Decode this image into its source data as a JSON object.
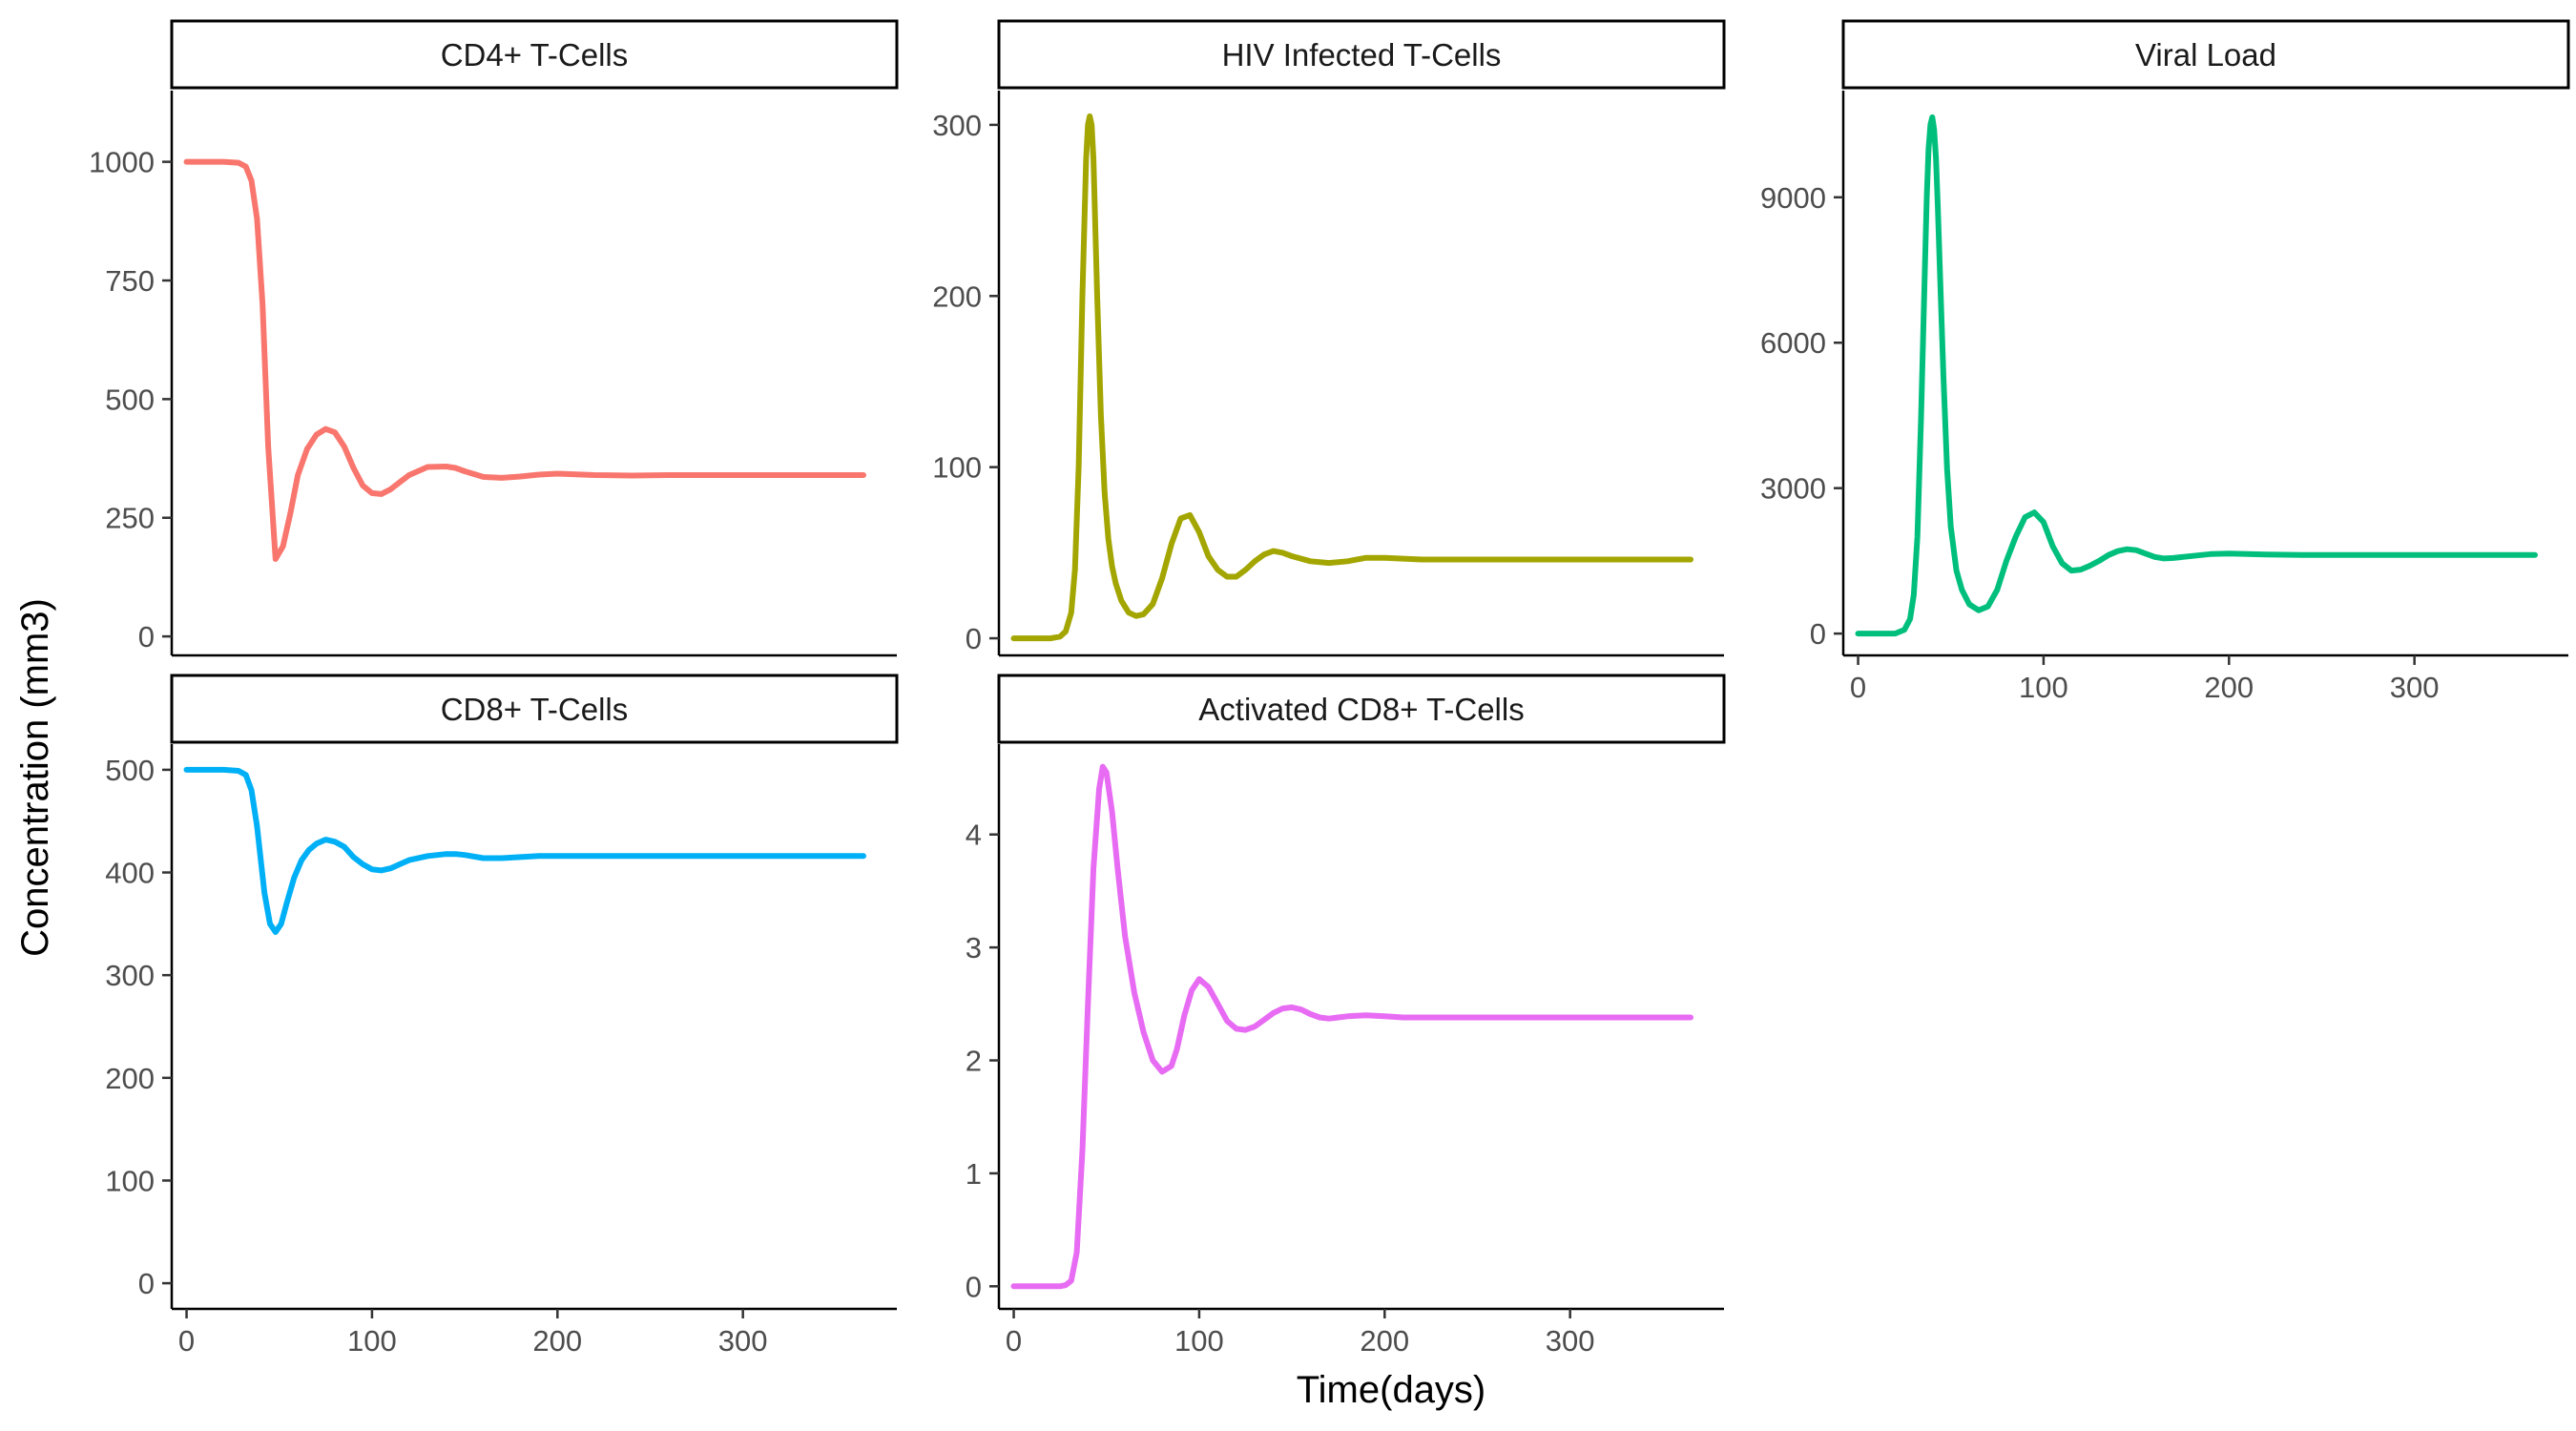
{
  "figure": {
    "ylabel": "Concentration (mm3)",
    "xlabel": "Time(days)"
  },
  "chart_data": [
    {
      "type": "line",
      "title": "CD4+ T-Cells",
      "color": "#F8766D",
      "xlim": [
        -8,
        383
      ],
      "ylim": [
        -40,
        1150
      ],
      "xticks": [
        0,
        100,
        200,
        300
      ],
      "yticks": [
        0,
        250,
        500,
        750,
        1000
      ],
      "show_xticks": false,
      "x": [
        0,
        10,
        20,
        28,
        32,
        35,
        38,
        41,
        44,
        48,
        52,
        56,
        60,
        65,
        70,
        75,
        80,
        85,
        90,
        95,
        100,
        105,
        110,
        115,
        120,
        130,
        140,
        145,
        150,
        160,
        170,
        180,
        190,
        200,
        220,
        240,
        260,
        280,
        300,
        320,
        340,
        365
      ],
      "y": [
        1000,
        1000,
        1000,
        998,
        990,
        960,
        880,
        700,
        400,
        163,
        190,
        260,
        340,
        395,
        425,
        437,
        430,
        400,
        355,
        318,
        302,
        300,
        310,
        325,
        340,
        357,
        358,
        355,
        348,
        336,
        334,
        337,
        341,
        343,
        340,
        339,
        340,
        340,
        340,
        340,
        340,
        340
      ]
    },
    {
      "type": "line",
      "title": "HIV Infected T-Cells",
      "color": "#A3A500",
      "xlim": [
        -8,
        383
      ],
      "ylim": [
        -10,
        320
      ],
      "xticks": [
        0,
        100,
        200,
        300
      ],
      "yticks": [
        0,
        100,
        200,
        300
      ],
      "show_xticks": false,
      "x": [
        0,
        10,
        20,
        25,
        28,
        31,
        33,
        35,
        37,
        39,
        40,
        41,
        42,
        43,
        45,
        47,
        49,
        51,
        53,
        55,
        58,
        62,
        66,
        70,
        75,
        80,
        85,
        90,
        95,
        100,
        105,
        110,
        115,
        120,
        125,
        130,
        135,
        140,
        145,
        150,
        160,
        170,
        180,
        190,
        200,
        220,
        240,
        260,
        280,
        300,
        320,
        340,
        365
      ],
      "y": [
        0,
        0,
        0,
        1,
        4,
        15,
        40,
        100,
        200,
        280,
        300,
        305,
        300,
        280,
        200,
        130,
        85,
        58,
        42,
        32,
        22,
        15,
        13,
        14,
        20,
        35,
        55,
        70,
        72,
        62,
        48,
        40,
        36,
        36,
        40,
        45,
        49,
        51,
        50,
        48,
        45,
        44,
        45,
        47,
        47,
        46,
        46,
        46,
        46,
        46,
        46,
        46,
        46
      ]
    },
    {
      "type": "line",
      "title": "Viral Load",
      "color": "#00BF7D",
      "xlim": [
        -8,
        383
      ],
      "ylim": [
        -450,
        11200
      ],
      "xticks": [
        0,
        100,
        200,
        300
      ],
      "yticks": [
        0,
        3000,
        6000,
        9000
      ],
      "show_xticks": true,
      "x": [
        0,
        10,
        20,
        25,
        28,
        30,
        32,
        34,
        36,
        37,
        38,
        39,
        40,
        41,
        42,
        43,
        44,
        46,
        48,
        50,
        53,
        56,
        60,
        65,
        70,
        75,
        80,
        85,
        90,
        95,
        100,
        105,
        110,
        115,
        120,
        125,
        130,
        135,
        140,
        145,
        150,
        155,
        160,
        165,
        170,
        180,
        190,
        200,
        220,
        240,
        260,
        280,
        300,
        320,
        340,
        365
      ],
      "y": [
        0,
        0,
        0,
        80,
        300,
        800,
        2000,
        4500,
        7500,
        9000,
        10000,
        10500,
        10650,
        10400,
        9800,
        8800,
        7600,
        5300,
        3400,
        2200,
        1300,
        900,
        600,
        480,
        560,
        900,
        1500,
        2000,
        2400,
        2500,
        2300,
        1800,
        1450,
        1300,
        1320,
        1400,
        1500,
        1620,
        1700,
        1740,
        1720,
        1650,
        1580,
        1550,
        1560,
        1600,
        1640,
        1650,
        1630,
        1620,
        1620,
        1620,
        1620,
        1620,
        1620,
        1620
      ]
    },
    {
      "type": "line",
      "title": "CD8+ T-Cells",
      "color": "#00B0F6",
      "xlim": [
        -8,
        383
      ],
      "ylim": [
        -25,
        525
      ],
      "xticks": [
        0,
        100,
        200,
        300
      ],
      "yticks": [
        0,
        100,
        200,
        300,
        400,
        500
      ],
      "show_xticks": true,
      "x": [
        0,
        10,
        20,
        28,
        32,
        35,
        38,
        42,
        45,
        48,
        51,
        54,
        58,
        62,
        66,
        70,
        75,
        80,
        85,
        90,
        95,
        100,
        105,
        110,
        115,
        120,
        130,
        140,
        145,
        150,
        160,
        170,
        180,
        190,
        200,
        220,
        240,
        260,
        280,
        300,
        320,
        340,
        365
      ],
      "y": [
        500,
        500,
        500,
        499,
        495,
        480,
        445,
        380,
        350,
        342,
        350,
        370,
        395,
        412,
        422,
        428,
        432,
        430,
        425,
        415,
        408,
        403,
        402,
        404,
        408,
        412,
        416,
        418,
        418,
        417,
        414,
        414,
        415,
        416,
        416,
        416,
        416,
        416,
        416,
        416,
        416,
        416,
        416
      ]
    },
    {
      "type": "line",
      "title": "Activated CD8+ T-Cells",
      "color": "#E76BF3",
      "xlim": [
        -8,
        383
      ],
      "ylim": [
        -0.2,
        4.8
      ],
      "xticks": [
        0,
        100,
        200,
        300
      ],
      "yticks": [
        0,
        1,
        2,
        3,
        4
      ],
      "show_xticks": true,
      "x": [
        0,
        10,
        20,
        25,
        28,
        31,
        34,
        37,
        40,
        43,
        46,
        48,
        50,
        53,
        56,
        60,
        65,
        70,
        75,
        80,
        85,
        88,
        92,
        96,
        100,
        105,
        110,
        115,
        120,
        125,
        130,
        135,
        140,
        145,
        150,
        155,
        160,
        165,
        170,
        175,
        180,
        190,
        200,
        210,
        220,
        240,
        260,
        280,
        300,
        320,
        340,
        365
      ],
      "y": [
        0,
        0,
        0,
        0,
        0.01,
        0.05,
        0.3,
        1.2,
        2.5,
        3.7,
        4.4,
        4.6,
        4.55,
        4.2,
        3.7,
        3.1,
        2.6,
        2.25,
        2.0,
        1.9,
        1.95,
        2.1,
        2.4,
        2.62,
        2.72,
        2.65,
        2.5,
        2.35,
        2.28,
        2.27,
        2.3,
        2.36,
        2.42,
        2.46,
        2.47,
        2.45,
        2.41,
        2.38,
        2.37,
        2.38,
        2.39,
        2.4,
        2.39,
        2.38,
        2.38,
        2.38,
        2.38,
        2.38,
        2.38,
        2.38,
        2.38,
        2.38
      ]
    }
  ]
}
